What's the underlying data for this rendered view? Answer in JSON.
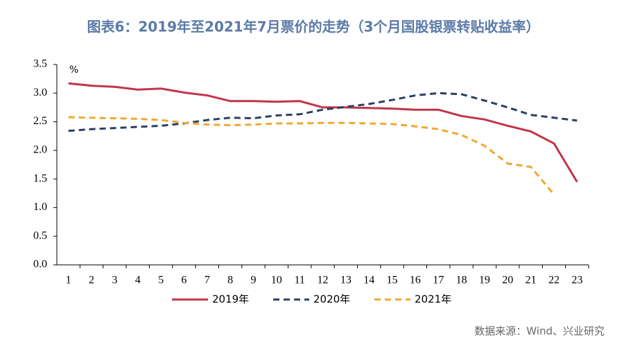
{
  "chart_data": {
    "type": "line",
    "title": "图表6：2019年至2021年7月票价的走势（3个月国股银票转贴收益率）",
    "unit": "%",
    "source": "数据来源：Wind、兴业研究",
    "categories": [
      "1",
      "2",
      "3",
      "4",
      "5",
      "6",
      "7",
      "8",
      "9",
      "10",
      "11",
      "12",
      "13",
      "14",
      "15",
      "16",
      "17",
      "18",
      "19",
      "20",
      "21",
      "22",
      "23"
    ],
    "ylim": [
      0,
      3.5
    ],
    "yticks": [
      {
        "value": 0,
        "label": "0.0"
      },
      0.5,
      {
        "value": 1,
        "label": "1.0"
      },
      1.5,
      {
        "value": 2,
        "label": "2.0"
      },
      2.5,
      {
        "value": 3,
        "label": "3.0"
      },
      3.5
    ],
    "legend": "bottom",
    "series": [
      {
        "name": "2019年",
        "color": "#c0344a",
        "dash": "solid",
        "values": [
          3.17,
          3.13,
          3.11,
          3.06,
          3.08,
          3.01,
          2.96,
          2.86,
          2.86,
          2.85,
          2.86,
          2.75,
          2.75,
          2.74,
          2.73,
          2.71,
          2.71,
          2.6,
          2.54,
          2.43,
          2.33,
          2.12,
          1.45
        ]
      },
      {
        "name": "2020年",
        "color": "#2a3f63",
        "dash": "dashed",
        "values": [
          2.34,
          2.37,
          2.39,
          2.41,
          2.43,
          2.47,
          2.53,
          2.57,
          2.56,
          2.61,
          2.63,
          2.71,
          2.76,
          2.81,
          2.88,
          2.96,
          3.0,
          2.98,
          2.87,
          2.75,
          2.62,
          2.57,
          2.52
        ]
      },
      {
        "name": "2021年",
        "color": "#f0a830",
        "dash": "dashed",
        "values": [
          2.58,
          2.57,
          2.56,
          2.55,
          2.53,
          2.48,
          2.45,
          2.44,
          2.45,
          2.47,
          2.47,
          2.48,
          2.48,
          2.47,
          2.46,
          2.42,
          2.37,
          2.27,
          2.08,
          1.77,
          1.71,
          1.23,
          null
        ]
      }
    ]
  }
}
